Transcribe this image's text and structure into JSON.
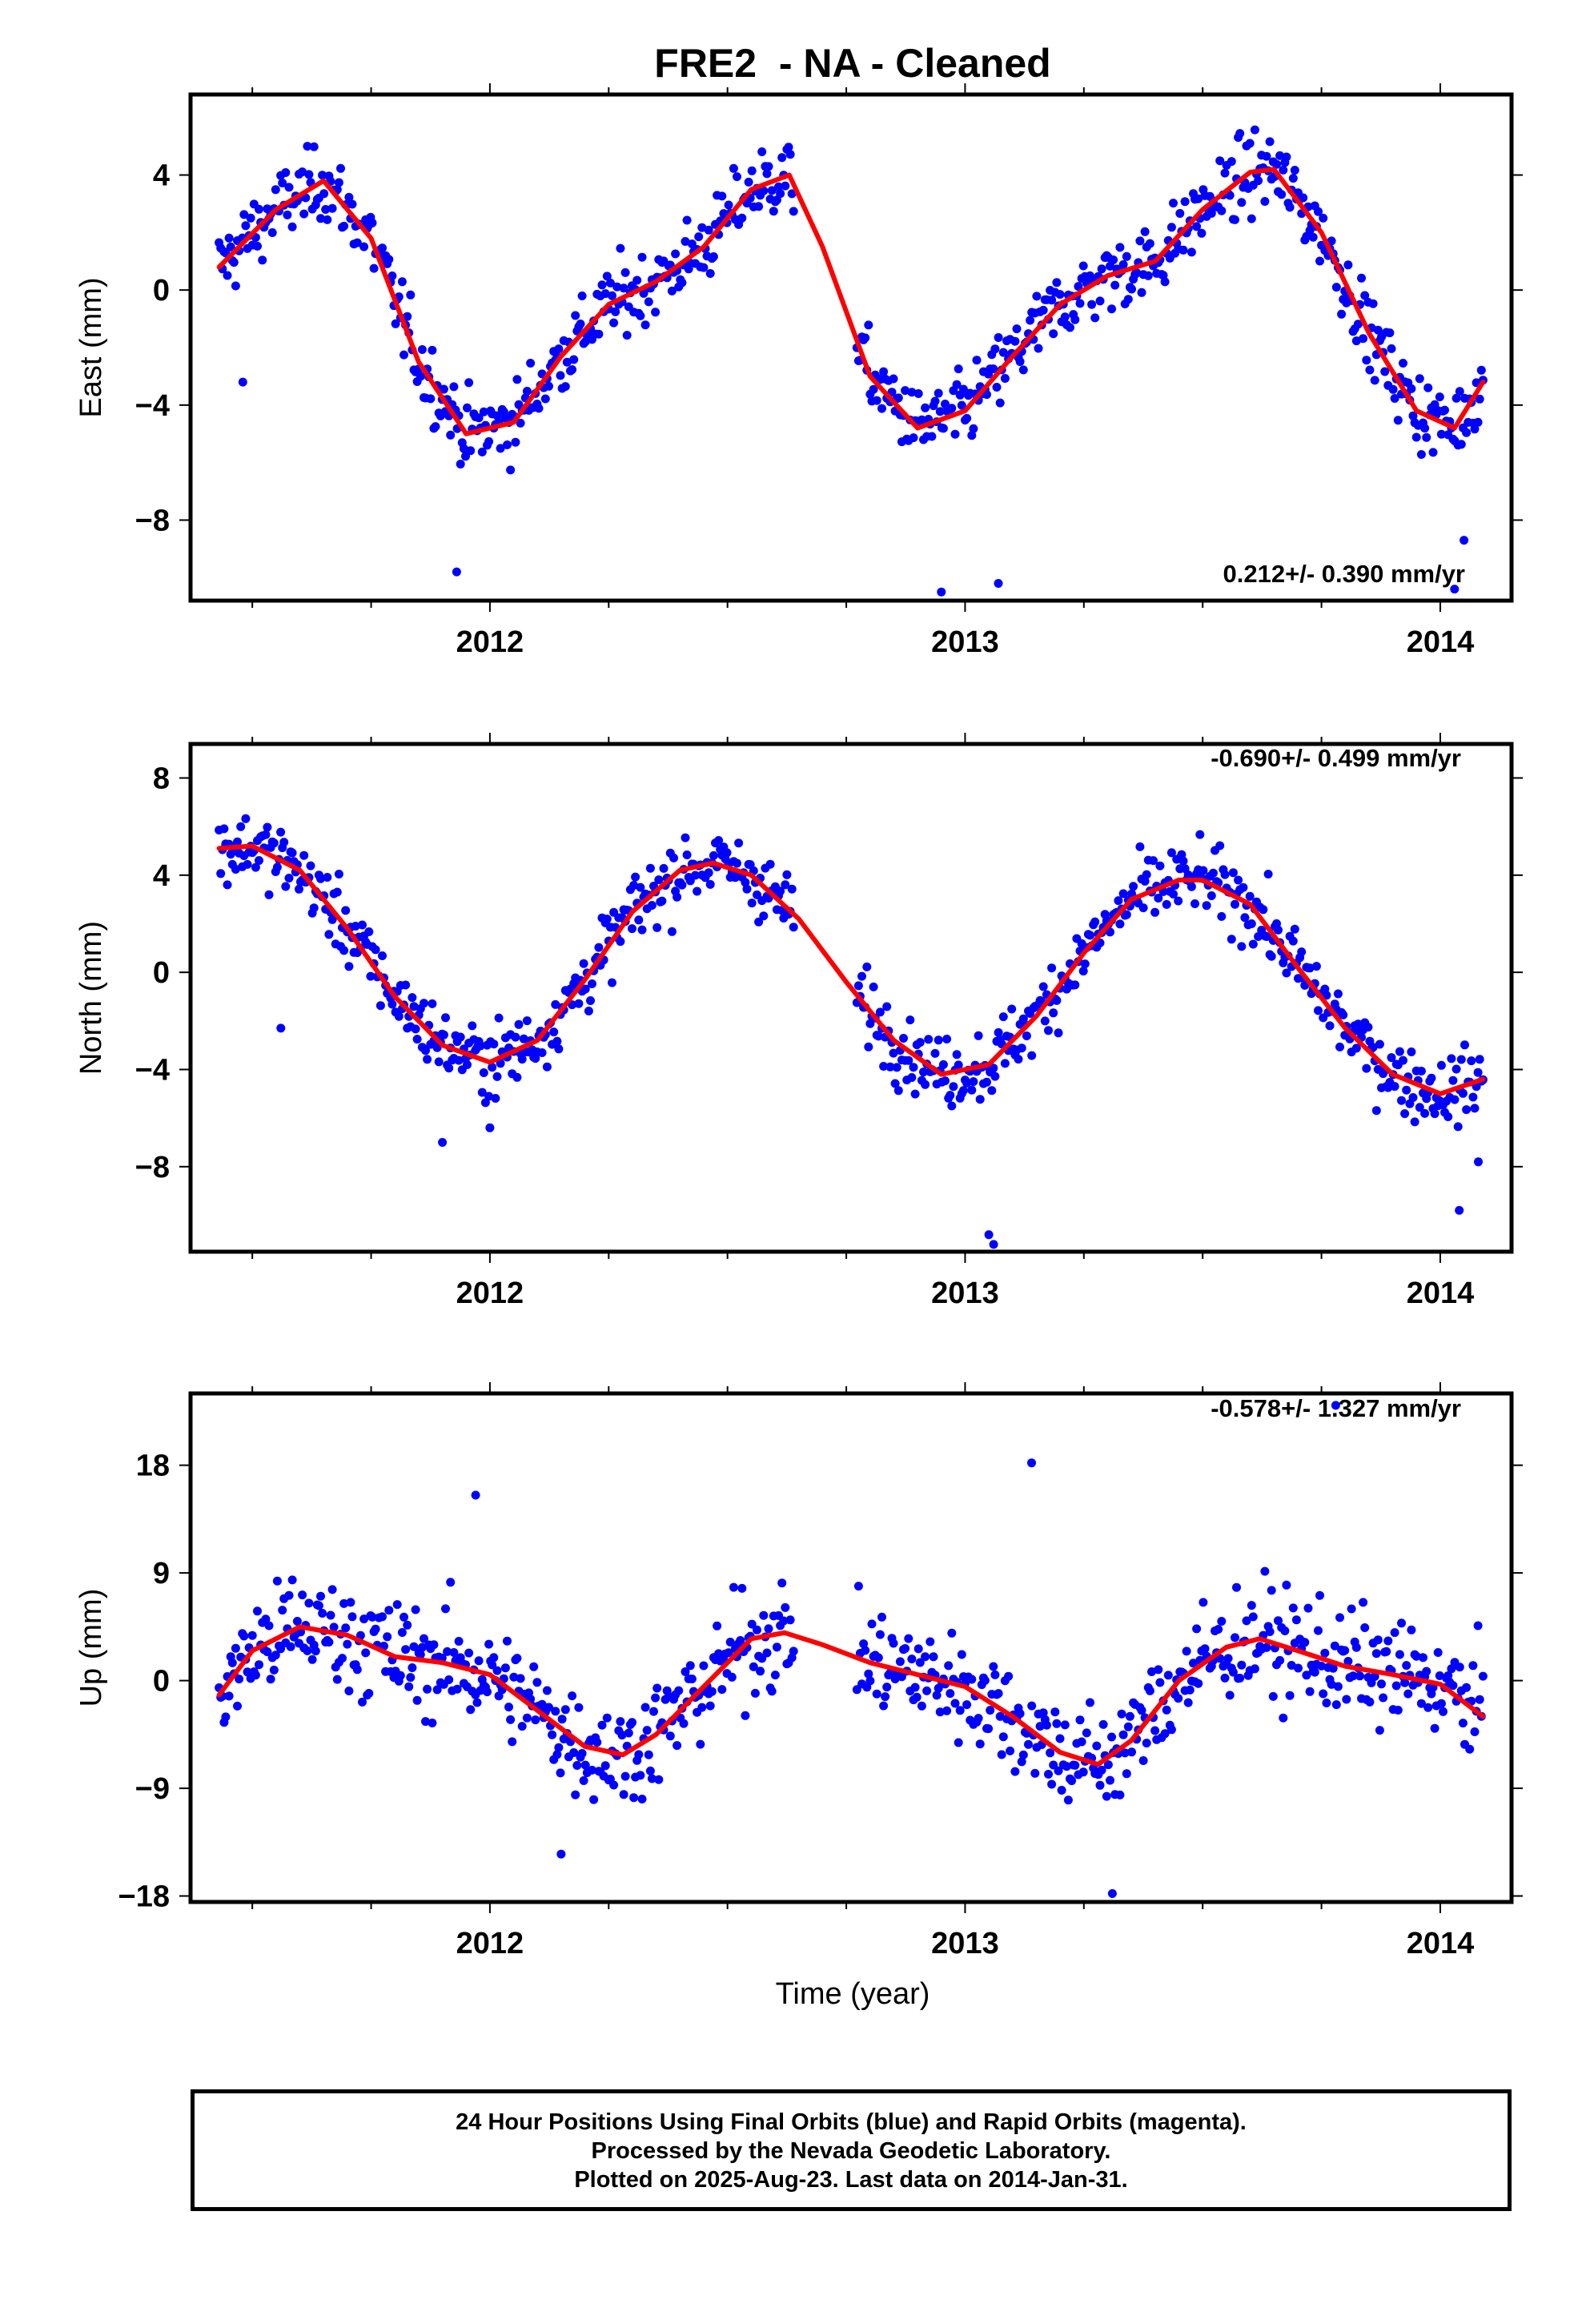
{
  "title": "FRE2  - NA - Cleaned",
  "colors": {
    "final_orbits": "#0000ff",
    "fit_curve": "#ff0000",
    "axes": "#000000"
  },
  "xlabel": "Time (year)",
  "footer": {
    "line1": "24 Hour Positions Using Final Orbits (blue) and Rapid Orbits (magenta).",
    "line2": "Processed by the Nevada Geodetic Laboratory.",
    "line3": "Plotted on 2025-Aug-23. Last data on 2014-Jan-31."
  },
  "chart_data": [
    {
      "type": "scatter",
      "panel": "east",
      "ylabel": "East (mm)",
      "rate_label": "0.212+/- 0.390 mm/yr",
      "xlim": [
        2011.37,
        2014.15
      ],
      "ylim": [
        -10.8,
        6.8
      ],
      "yticks": [
        4,
        0,
        -4,
        -8
      ],
      "ytick_labels": [
        "4",
        "0",
        "−4",
        "−8"
      ],
      "xticks": [
        2012,
        2013,
        2014
      ],
      "xtick_labels": [
        "2012",
        "2013",
        "2014"
      ],
      "fit_curve": {
        "x": [
          2011.43,
          2011.55,
          2011.65,
          2011.75,
          2011.85,
          2011.95,
          2012.05,
          2012.15,
          2012.25,
          2012.35,
          2012.45,
          2012.55,
          2012.63,
          2012.7,
          2012.8,
          2012.9,
          2013.0,
          2013.1,
          2013.2,
          2013.3,
          2013.4,
          2013.5,
          2013.6,
          2013.65,
          2013.75,
          2013.85,
          2013.95,
          2014.03,
          2014.09
        ],
        "y": [
          0.8,
          2.8,
          3.8,
          1.8,
          -2.5,
          -5.0,
          -4.6,
          -2.3,
          -0.5,
          0.3,
          1.5,
          3.5,
          4.0,
          1.5,
          -3.0,
          -4.8,
          -4.2,
          -2.3,
          -0.5,
          0.5,
          1.0,
          2.8,
          4.1,
          4.2,
          2.0,
          -1.5,
          -4.2,
          -4.8,
          -3.2
        ]
      },
      "series": [
        {
          "name": "Final Orbits",
          "x_start": 2011.43,
          "x_end": 2014.09,
          "n": 760,
          "outliers": [
            [
              2011.48,
              -3.2
            ],
            [
              2011.93,
              -9.8
            ],
            [
              2012.95,
              -10.5
            ],
            [
              2013.07,
              -10.2
            ],
            [
              2014.03,
              -10.4
            ],
            [
              2014.05,
              -8.7
            ]
          ]
        }
      ]
    },
    {
      "type": "scatter",
      "panel": "north",
      "ylabel": "North (mm)",
      "rate_label": "-0.690+/- 0.499 mm/yr",
      "xlim": [
        2011.37,
        2014.15
      ],
      "ylim": [
        -11.5,
        9.4
      ],
      "yticks": [
        8,
        4,
        0,
        -4,
        -8
      ],
      "ytick_labels": [
        "8",
        "4",
        "0",
        "−4",
        "−8"
      ],
      "xticks": [
        2012,
        2013,
        2014
      ],
      "xtick_labels": [
        "2012",
        "2013",
        "2014"
      ],
      "fit_curve": {
        "x": [
          2011.43,
          2011.5,
          2011.6,
          2011.7,
          2011.8,
          2011.9,
          2012.0,
          2012.1,
          2012.2,
          2012.3,
          2012.4,
          2012.47,
          2012.55,
          2012.65,
          2012.75,
          2012.85,
          2012.95,
          2013.05,
          2013.15,
          2013.25,
          2013.35,
          2013.45,
          2013.5,
          2013.6,
          2013.7,
          2013.8,
          2013.9,
          2014.0,
          2014.09
        ],
        "y": [
          5.1,
          5.2,
          4.2,
          1.8,
          -1.0,
          -3.0,
          -3.7,
          -2.8,
          -0.3,
          2.5,
          4.2,
          4.5,
          4.0,
          2.2,
          -0.4,
          -2.8,
          -4.2,
          -3.8,
          -1.8,
          0.8,
          3.0,
          3.8,
          3.8,
          2.8,
          0.2,
          -2.3,
          -4.2,
          -5.0,
          -4.4
        ]
      },
      "series": [
        {
          "name": "Final Orbits",
          "x_start": 2011.43,
          "x_end": 2014.09,
          "n": 760,
          "outliers": [
            [
              2011.56,
              -2.3
            ],
            [
              2011.9,
              -7.0
            ],
            [
              2012.0,
              -6.4
            ],
            [
              2013.05,
              -10.8
            ],
            [
              2013.06,
              -11.2
            ],
            [
              2014.04,
              -9.8
            ],
            [
              2014.08,
              -7.8
            ]
          ]
        }
      ]
    },
    {
      "type": "scatter",
      "panel": "up",
      "ylabel": "Up (mm)",
      "rate_label": "-0.578+/- 1.327 mm/yr",
      "xlim": [
        2011.37,
        2014.15
      ],
      "ylim": [
        -18.5,
        24
      ],
      "yticks": [
        18,
        9,
        0,
        -9,
        -18
      ],
      "ytick_labels": [
        "18",
        "9",
        "0",
        "−9",
        "−18"
      ],
      "xticks": [
        2012,
        2013,
        2014
      ],
      "xtick_labels": [
        "2012",
        "2013",
        "2014"
      ],
      "fit_curve": {
        "x": [
          2011.43,
          2011.5,
          2011.6,
          2011.7,
          2011.8,
          2011.9,
          2012.0,
          2012.1,
          2012.2,
          2012.28,
          2012.35,
          2012.45,
          2012.55,
          2012.62,
          2012.7,
          2012.8,
          2012.9,
          2013.0,
          2013.1,
          2013.2,
          2013.28,
          2013.35,
          2013.45,
          2013.55,
          2013.62,
          2013.7,
          2013.8,
          2013.9,
          2014.0,
          2014.09
        ],
        "y": [
          -1.2,
          2.5,
          4.5,
          3.8,
          2.0,
          1.5,
          0.5,
          -2.5,
          -5.5,
          -6.2,
          -4.5,
          -0.5,
          3.5,
          4.0,
          3.0,
          1.5,
          0.5,
          -0.5,
          -3.0,
          -6.0,
          -7.0,
          -5.0,
          0.0,
          2.8,
          3.5,
          2.5,
          1.2,
          0.5,
          -0.3,
          -3.0
        ]
      },
      "series": [
        {
          "name": "Final Orbits",
          "x_start": 2011.43,
          "x_end": 2014.09,
          "n": 760,
          "outliers": [
            [
              2011.97,
              15.5
            ],
            [
              2013.14,
              18.2
            ],
            [
              2013.78,
              23.0
            ],
            [
              2013.31,
              -17.8
            ],
            [
              2012.15,
              -14.5
            ]
          ]
        }
      ]
    }
  ]
}
